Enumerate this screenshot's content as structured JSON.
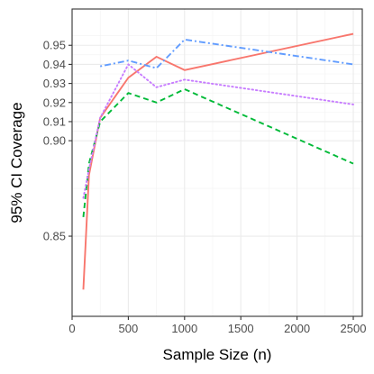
{
  "chart_data": {
    "type": "line",
    "xlabel": "Sample Size (n)",
    "ylabel": "95% CI Coverage",
    "xlim": [
      0,
      2580
    ],
    "ylim": [
      0.808,
      0.969
    ],
    "grid": true,
    "legend": "none",
    "x_ticks": [
      0,
      500,
      1000,
      1500,
      2000,
      2500
    ],
    "x_tick_labels": [
      "0",
      "500",
      "1000",
      "1500",
      "2000",
      "2500"
    ],
    "y_ticks": [
      0.85,
      0.9,
      0.91,
      0.92,
      0.93,
      0.94,
      0.95
    ],
    "y_tick_labels": [
      "0.85",
      "0.90",
      "0.91",
      "0.92",
      "0.93",
      "0.94",
      "0.95"
    ],
    "series": [
      {
        "color": "#f8766d",
        "dash": "solid",
        "x": [
          100,
          150,
          250,
          500,
          750,
          1000,
          2500
        ],
        "y": [
          0.822,
          0.882,
          0.912,
          0.933,
          0.944,
          0.937,
          0.956
        ]
      },
      {
        "color": "#00ba38",
        "dash": "dashed",
        "x": [
          100,
          150,
          250,
          500,
          750,
          1000,
          2500
        ],
        "y": [
          0.86,
          0.888,
          0.91,
          0.925,
          0.92,
          0.927,
          0.888
        ]
      },
      {
        "color": "#619cff",
        "dash": "dotdash",
        "x": [
          250,
          500,
          750,
          1000,
          2500
        ],
        "y": [
          0.939,
          0.942,
          0.938,
          0.953,
          0.94
        ]
      },
      {
        "color": "#c77cff",
        "dash": "dotted",
        "x": [
          100,
          150,
          250,
          500,
          750,
          1000,
          2500
        ],
        "y": [
          0.87,
          0.885,
          0.912,
          0.94,
          0.928,
          0.932,
          0.919
        ]
      }
    ]
  }
}
